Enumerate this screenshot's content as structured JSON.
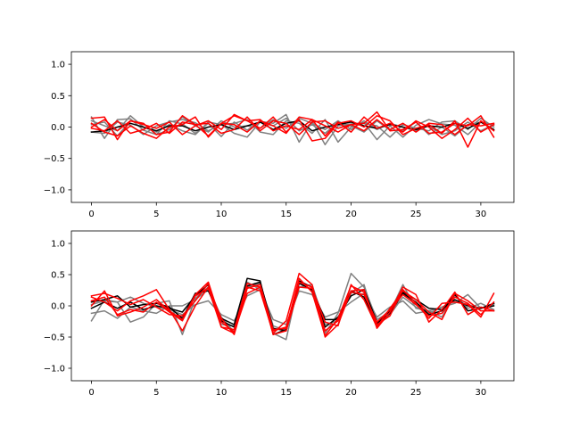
{
  "chart_data": [
    {
      "type": "line",
      "xlim": [
        -1.55,
        32.55
      ],
      "ylim": [
        -1.2,
        1.2
      ],
      "xticks": [
        0,
        5,
        10,
        15,
        20,
        25,
        30
      ],
      "yticks": [
        -1.0,
        -0.5,
        0.0,
        0.5,
        1.0
      ],
      "xtick_labels": [
        "0",
        "5",
        "10",
        "15",
        "20",
        "25",
        "30"
      ],
      "ytick_labels": [
        "−1.0",
        "−0.5",
        "0.0",
        "0.5",
        "1.0"
      ],
      "grid": false,
      "x": [
        0,
        1,
        2,
        3,
        4,
        5,
        6,
        7,
        8,
        9,
        10,
        11,
        12,
        13,
        14,
        15,
        16,
        17,
        18,
        19,
        20,
        21,
        22,
        23,
        24,
        25,
        26,
        27,
        28,
        29,
        30,
        31
      ],
      "series": [
        {
          "color": "#808080",
          "values": [
            0.16,
            -0.18,
            0.12,
            0.13,
            -0.05,
            -0.12,
            0.1,
            0.05,
            -0.1,
            0.06,
            -0.15,
            0.08,
            -0.05,
            0.09,
            0.06,
            0.2,
            -0.24,
            0.09,
            -0.28,
            0.02,
            0.05,
            0.07,
            -0.2,
            0.02,
            -0.16,
            0.03,
            0.12,
            0.05,
            0.03,
            -0.12,
            0.08,
            -0.05
          ]
        },
        {
          "color": "#808080",
          "values": [
            -0.08,
            -0.1,
            0.08,
            0.03,
            -0.12,
            0.02,
            0.08,
            0.12,
            0.07,
            -0.06,
            0.04,
            -0.1,
            -0.16,
            0.08,
            0.02,
            0.14,
            -0.06,
            0.04,
            -0.1,
            0.08,
            0.02,
            -0.08,
            0.1,
            -0.05,
            -0.06,
            0.08,
            -0.12,
            0.0,
            -0.14,
            0.04,
            0.08,
            0.03
          ]
        },
        {
          "color": "#808080",
          "values": [
            0.1,
            0.02,
            -0.06,
            0.18,
            0.0,
            -0.08,
            0.04,
            -0.06,
            -0.12,
            0.08,
            0.04,
            0.06,
            0.12,
            -0.08,
            -0.12,
            0.1,
            0.06,
            -0.1,
            0.12,
            -0.24,
            0.0,
            0.06,
            0.02,
            -0.16,
            0.04,
            -0.02,
            -0.06,
            0.08,
            0.1,
            -0.04,
            0.14,
            0.0
          ]
        },
        {
          "color": "#808080",
          "values": [
            0.04,
            0.08,
            -0.14,
            0.1,
            0.06,
            -0.12,
            -0.04,
            0.16,
            0.02,
            -0.08,
            0.1,
            0.0,
            0.02,
            -0.02,
            0.12,
            -0.02,
            0.14,
            0.06,
            -0.04,
            0.1,
            -0.04,
            0.1,
            -0.04,
            0.06,
            0.0,
            -0.06,
            0.02,
            -0.12,
            -0.06,
            0.08,
            -0.06,
            0.04
          ]
        },
        {
          "color": "#000000",
          "values": [
            -0.08,
            -0.06,
            0.0,
            0.06,
            0.0,
            -0.06,
            0.02,
            0.02,
            -0.06,
            0.0,
            0.04,
            -0.04,
            0.02,
            0.08,
            -0.04,
            0.06,
            0.1,
            -0.06,
            0.0,
            0.04,
            0.08,
            0.02,
            -0.02,
            0.04,
            0.0,
            -0.04,
            0.02,
            0.0,
            0.06,
            -0.02,
            0.08,
            -0.04
          ]
        },
        {
          "color": "#ff0000",
          "values": [
            0.14,
            0.16,
            -0.2,
            0.1,
            0.06,
            -0.12,
            -0.08,
            0.18,
            0.04,
            -0.14,
            0.06,
            0.04,
            -0.08,
            0.1,
            0.02,
            -0.1,
            0.16,
            0.12,
            0.02,
            -0.08,
            0.04,
            0.06,
            0.24,
            -0.06,
            -0.04,
            0.08,
            -0.1,
            -0.08,
            0.06,
            0.02,
            0.18,
            -0.16
          ]
        },
        {
          "color": "#ff0000",
          "values": [
            0.06,
            -0.08,
            -0.14,
            0.02,
            -0.1,
            -0.18,
            0.0,
            0.04,
            0.16,
            -0.16,
            0.06,
            0.18,
            0.1,
            -0.02,
            0.16,
            -0.08,
            0.12,
            -0.22,
            -0.18,
            0.06,
            0.1,
            0.0,
            0.18,
            0.1,
            -0.12,
            -0.02,
            0.04,
            -0.1,
            0.1,
            -0.32,
            0.1,
            -0.06
          ]
        },
        {
          "color": "#ff0000",
          "values": [
            0.0,
            0.12,
            -0.06,
            0.1,
            0.04,
            -0.02,
            0.08,
            -0.12,
            0.02,
            0.1,
            -0.04,
            0.2,
            0.1,
            0.12,
            -0.06,
            0.02,
            -0.04,
            0.12,
            -0.14,
            0.08,
            -0.08,
            0.16,
            -0.02,
            0.06,
            -0.08,
            0.1,
            0.0,
            -0.18,
            -0.04,
            0.14,
            -0.08,
            0.04
          ]
        },
        {
          "color": "#ff0000",
          "values": [
            -0.02,
            -0.06,
            0.1,
            -0.1,
            -0.04,
            0.06,
            -0.1,
            0.08,
            0.04,
            0.06,
            -0.1,
            -0.04,
            0.16,
            -0.06,
            0.1,
            0.06,
            -0.12,
            0.08,
            0.1,
            -0.02,
            0.04,
            -0.06,
            0.12,
            -0.04,
            0.06,
            -0.08,
            0.06,
            0.04,
            -0.12,
            0.04,
            0.02,
            0.06
          ]
        }
      ]
    },
    {
      "type": "line",
      "xlim": [
        -1.55,
        32.55
      ],
      "ylim": [
        -1.2,
        1.2
      ],
      "xticks": [
        0,
        5,
        10,
        15,
        20,
        25,
        30
      ],
      "yticks": [
        -1.0,
        -0.5,
        0.0,
        0.5,
        1.0
      ],
      "xtick_labels": [
        "0",
        "5",
        "10",
        "15",
        "20",
        "25",
        "30"
      ],
      "ytick_labels": [
        "−1.0",
        "−0.5",
        "0.0",
        "0.5",
        "1.0"
      ],
      "grid": false,
      "x": [
        0,
        1,
        2,
        3,
        4,
        5,
        6,
        7,
        8,
        9,
        10,
        11,
        12,
        13,
        14,
        15,
        16,
        17,
        18,
        19,
        20,
        21,
        22,
        23,
        24,
        25,
        26,
        27,
        28,
        29,
        30,
        31
      ],
      "series": [
        {
          "color": "#808080",
          "values": [
            -0.24,
            0.1,
            0.06,
            -0.26,
            -0.18,
            0.04,
            0.08,
            -0.46,
            0.12,
            0.3,
            -0.18,
            -0.42,
            0.38,
            0.26,
            -0.44,
            -0.54,
            0.4,
            0.24,
            -0.44,
            -0.12,
            0.52,
            0.3,
            -0.22,
            -0.1,
            0.34,
            -0.04,
            -0.08,
            -0.18,
            0.18,
            -0.04,
            0.04,
            -0.06
          ]
        },
        {
          "color": "#808080",
          "values": [
            -0.12,
            -0.08,
            -0.2,
            -0.02,
            -0.08,
            -0.12,
            0.0,
            0.0,
            0.1,
            0.26,
            -0.3,
            -0.32,
            0.3,
            0.36,
            -0.32,
            -0.4,
            0.3,
            0.34,
            -0.3,
            -0.24,
            0.2,
            0.34,
            -0.32,
            -0.14,
            0.14,
            -0.02,
            -0.12,
            -0.02,
            0.04,
            0.18,
            -0.04,
            0.04
          ]
        },
        {
          "color": "#808080",
          "values": [
            0.02,
            0.08,
            0.06,
            0.14,
            0.04,
            -0.02,
            -0.06,
            -0.14,
            0.02,
            0.08,
            -0.14,
            -0.24,
            0.16,
            0.26,
            -0.22,
            -0.3,
            0.24,
            0.18,
            -0.18,
            -0.1,
            0.06,
            0.2,
            -0.18,
            -0.02,
            0.08,
            -0.12,
            -0.08,
            -0.02,
            0.08,
            0.02,
            -0.04,
            0.02
          ]
        },
        {
          "color": "#000000",
          "values": [
            0.06,
            0.1,
            0.16,
            -0.02,
            0.02,
            0.04,
            -0.02,
            -0.2,
            0.2,
            0.24,
            -0.2,
            -0.3,
            0.44,
            0.4,
            -0.46,
            -0.38,
            0.4,
            0.3,
            -0.34,
            -0.18,
            0.16,
            0.26,
            -0.26,
            -0.08,
            0.22,
            0.1,
            -0.04,
            -0.06,
            0.1,
            0.0,
            -0.04,
            0.04
          ]
        },
        {
          "color": "#000000",
          "values": [
            -0.04,
            0.06,
            -0.04,
            0.06,
            -0.06,
            0.0,
            -0.04,
            -0.1,
            0.16,
            0.34,
            -0.24,
            -0.34,
            0.32,
            0.38,
            -0.36,
            -0.4,
            0.36,
            0.26,
            -0.22,
            -0.22,
            0.24,
            0.14,
            -0.28,
            -0.12,
            0.2,
            0.06,
            -0.14,
            -0.08,
            0.18,
            -0.08,
            -0.04,
            0.0
          ]
        },
        {
          "color": "#ff0000",
          "values": [
            0.16,
            0.2,
            0.12,
            0.02,
            0.1,
            -0.02,
            -0.14,
            -0.16,
            0.08,
            0.36,
            -0.34,
            -0.44,
            0.3,
            0.24,
            -0.44,
            -0.24,
            0.52,
            0.34,
            -0.5,
            -0.3,
            0.24,
            0.26,
            -0.36,
            -0.1,
            0.3,
            0.18,
            -0.26,
            -0.06,
            0.22,
            -0.14,
            -0.02,
            -0.08
          ]
        },
        {
          "color": "#ff0000",
          "values": [
            0.14,
            0.06,
            -0.08,
            0.08,
            0.16,
            0.26,
            -0.06,
            -0.4,
            0.0,
            0.3,
            -0.2,
            -0.46,
            0.28,
            0.34,
            -0.38,
            -0.36,
            0.44,
            0.22,
            -0.48,
            -0.2,
            0.32,
            0.22,
            -0.3,
            -0.16,
            0.26,
            0.04,
            -0.2,
            0.04,
            0.06,
            0.02,
            -0.18,
            0.2
          ]
        },
        {
          "color": "#ff0000",
          "values": [
            0.0,
            0.24,
            -0.16,
            -0.1,
            -0.02,
            0.1,
            -0.08,
            -0.22,
            0.18,
            0.38,
            -0.26,
            -0.42,
            0.2,
            0.3,
            -0.46,
            -0.4,
            0.3,
            0.28,
            -0.26,
            -0.32,
            0.34,
            0.1,
            -0.34,
            -0.04,
            0.24,
            0.1,
            -0.1,
            -0.22,
            0.2,
            0.08,
            -0.08,
            -0.08
          ]
        },
        {
          "color": "#ff0000",
          "values": [
            0.08,
            0.14,
            -0.14,
            -0.06,
            -0.1,
            0.06,
            -0.1,
            -0.24,
            0.16,
            0.28,
            -0.34,
            -0.38,
            0.36,
            0.3,
            -0.4,
            -0.34,
            0.38,
            0.3,
            -0.4,
            -0.24,
            0.22,
            0.18,
            -0.26,
            -0.06,
            0.18,
            0.02,
            -0.16,
            -0.12,
            0.14,
            0.04,
            -0.14,
            0.06
          ]
        }
      ]
    }
  ]
}
